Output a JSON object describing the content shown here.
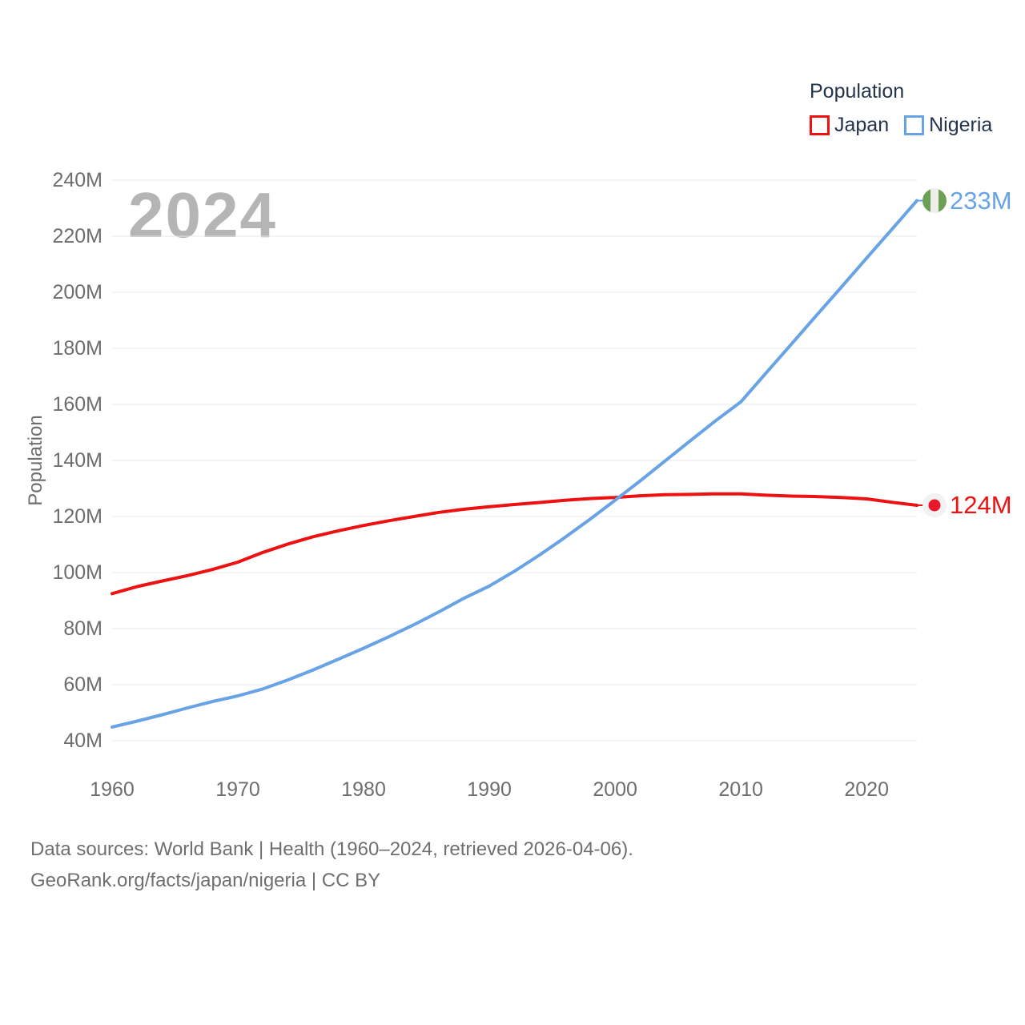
{
  "watermark": {
    "text": "2024",
    "color": "#b5b5b5"
  },
  "legend": {
    "title": "Population",
    "items": [
      {
        "label": "Japan",
        "color": "#ee1111"
      },
      {
        "label": "Nigeria",
        "color": "#67a3e5"
      }
    ]
  },
  "footer": {
    "line1": "Data sources: World Bank | Health (1960–2024, retrieved 2026-04-06).",
    "line2": "GeoRank.org/facts/japan/nigeria | CC BY"
  },
  "chart_data": {
    "type": "line",
    "title": "",
    "xlabel": "",
    "ylabel": "Population",
    "xlim": [
      1960,
      2024
    ],
    "ylim": [
      40,
      240
    ],
    "grid": "horizontal",
    "gridline_color": "#e9e9e9",
    "legend_position": "top-right",
    "x_ticks": [
      {
        "value": 1960,
        "label": "1960"
      },
      {
        "value": 1970,
        "label": "1970"
      },
      {
        "value": 1980,
        "label": "1980"
      },
      {
        "value": 1990,
        "label": "1990"
      },
      {
        "value": 2000,
        "label": "2000"
      },
      {
        "value": 2010,
        "label": "2010"
      },
      {
        "value": 2020,
        "label": "2020"
      }
    ],
    "y_ticks": [
      {
        "value": 40,
        "label": "40M"
      },
      {
        "value": 60,
        "label": "60M"
      },
      {
        "value": 80,
        "label": "80M"
      },
      {
        "value": 100,
        "label": "100M"
      },
      {
        "value": 120,
        "label": "120M"
      },
      {
        "value": 140,
        "label": "140M"
      },
      {
        "value": 160,
        "label": "160M"
      },
      {
        "value": 180,
        "label": "180M"
      },
      {
        "value": 200,
        "label": "200M"
      },
      {
        "value": 220,
        "label": "220M"
      },
      {
        "value": 240,
        "label": "240M"
      }
    ],
    "series": [
      {
        "name": "Japan",
        "color": "#ee1111",
        "end_label": "124M",
        "flag": "japan",
        "flag_colors": {
          "bg": "#f2f2f2",
          "disc": "#e8192b"
        },
        "points": [
          [
            1960,
            92.5
          ],
          [
            1962,
            95.0
          ],
          [
            1964,
            97.0
          ],
          [
            1966,
            98.9
          ],
          [
            1968,
            101.1
          ],
          [
            1970,
            103.7
          ],
          [
            1972,
            107.2
          ],
          [
            1974,
            110.2
          ],
          [
            1976,
            112.8
          ],
          [
            1978,
            114.9
          ],
          [
            1980,
            116.8
          ],
          [
            1982,
            118.5
          ],
          [
            1984,
            120.0
          ],
          [
            1986,
            121.5
          ],
          [
            1988,
            122.6
          ],
          [
            1990,
            123.5
          ],
          [
            1992,
            124.3
          ],
          [
            1994,
            125.0
          ],
          [
            1996,
            125.8
          ],
          [
            1998,
            126.4
          ],
          [
            2000,
            126.8
          ],
          [
            2002,
            127.4
          ],
          [
            2004,
            127.8
          ],
          [
            2006,
            127.9
          ],
          [
            2008,
            128.1
          ],
          [
            2010,
            128.1
          ],
          [
            2012,
            127.6
          ],
          [
            2014,
            127.3
          ],
          [
            2016,
            127.1
          ],
          [
            2018,
            126.8
          ],
          [
            2020,
            126.3
          ],
          [
            2022,
            125.1
          ],
          [
            2024,
            124.0
          ]
        ]
      },
      {
        "name": "Nigeria",
        "color": "#67a3e5",
        "end_label": "233M",
        "flag": "nigeria",
        "flag_colors": {
          "green": "#6da055",
          "white": "#eeefe9"
        },
        "points": [
          [
            1960,
            44.9
          ],
          [
            1962,
            47.0
          ],
          [
            1964,
            49.3
          ],
          [
            1966,
            51.7
          ],
          [
            1968,
            54.0
          ],
          [
            1970,
            56.0
          ],
          [
            1972,
            58.5
          ],
          [
            1974,
            61.7
          ],
          [
            1976,
            65.3
          ],
          [
            1978,
            69.1
          ],
          [
            1980,
            73.0
          ],
          [
            1982,
            77.1
          ],
          [
            1984,
            81.4
          ],
          [
            1986,
            86.0
          ],
          [
            1988,
            90.9
          ],
          [
            1990,
            95.2
          ],
          [
            1992,
            100.5
          ],
          [
            1994,
            106.3
          ],
          [
            1996,
            112.5
          ],
          [
            1998,
            119.0
          ],
          [
            2000,
            125.8
          ],
          [
            2002,
            132.7
          ],
          [
            2004,
            139.9
          ],
          [
            2006,
            147.1
          ],
          [
            2008,
            154.2
          ],
          [
            2010,
            160.9
          ],
          [
            2012,
            171.2
          ],
          [
            2014,
            181.4
          ],
          [
            2016,
            191.7
          ],
          [
            2018,
            201.9
          ],
          [
            2020,
            212.2
          ],
          [
            2022,
            222.4
          ],
          [
            2024,
            232.7
          ]
        ]
      }
    ]
  }
}
